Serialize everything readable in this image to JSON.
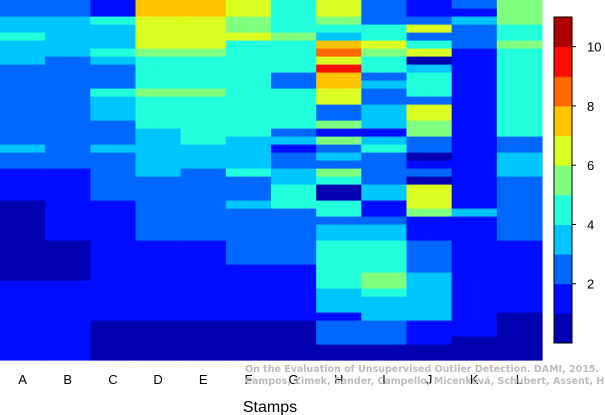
{
  "chart_data": {
    "type": "heatmap",
    "title": "",
    "xlabel": "Stamps",
    "ylabel": "",
    "colorbar": {
      "min": 0,
      "max": 11,
      "ticks": [
        2,
        4,
        6,
        8,
        10
      ],
      "colormap": "jet"
    },
    "columns": [
      "A",
      "B",
      "C",
      "D",
      "E",
      "F",
      "G",
      "H",
      "I",
      "J",
      "K",
      "L"
    ],
    "column_values": [
      [
        1,
        1,
        1,
        1,
        1,
        1,
        1,
        1,
        1,
        1,
        0,
        0,
        0,
        0,
        0,
        0,
        0,
        0,
        0,
        0,
        1,
        1,
        1,
        1,
        2,
        2,
        3,
        2,
        2,
        2,
        2,
        2,
        2,
        2,
        2,
        2,
        2,
        3,
        3,
        3,
        4,
        3,
        3,
        2,
        2
      ],
      [
        1,
        1,
        1,
        1,
        1,
        1,
        1,
        1,
        1,
        1,
        0,
        0,
        0,
        0,
        0,
        1,
        1,
        1,
        1,
        1,
        1,
        1,
        1,
        1,
        2,
        2,
        2,
        2,
        2,
        2,
        2,
        2,
        2,
        2,
        2,
        2,
        2,
        2,
        3,
        3,
        3,
        3,
        3,
        2,
        2
      ],
      [
        0,
        0,
        0,
        0,
        0,
        1,
        1,
        1,
        1,
        1,
        1,
        1,
        1,
        1,
        1,
        1,
        1,
        1,
        1,
        1,
        2,
        2,
        2,
        2,
        2,
        2,
        3,
        2,
        2,
        2,
        3,
        3,
        3,
        4,
        2,
        2,
        2,
        3,
        4,
        3,
        3,
        3,
        4,
        1,
        1
      ],
      [
        0,
        0,
        0,
        0,
        0,
        1,
        1,
        1,
        1,
        1,
        1,
        1,
        1,
        1,
        1,
        2,
        2,
        2,
        2,
        2,
        2,
        2,
        2,
        3,
        3,
        3,
        3,
        3,
        3,
        4,
        4,
        4,
        4,
        5,
        4,
        4,
        4,
        4,
        5,
        6,
        6,
        6,
        6,
        7,
        7
      ],
      [
        0,
        0,
        0,
        0,
        0,
        1,
        1,
        1,
        1,
        1,
        1,
        1,
        1,
        1,
        1,
        2,
        2,
        2,
        2,
        2,
        2,
        2,
        2,
        2,
        3,
        3,
        3,
        4,
        4,
        4,
        4,
        4,
        4,
        5,
        4,
        4,
        4,
        4,
        5,
        6,
        6,
        6,
        6,
        7,
        7
      ],
      [
        0,
        0,
        0,
        0,
        0,
        1,
        1,
        1,
        1,
        1,
        1,
        1,
        2,
        2,
        2,
        2,
        2,
        2,
        2,
        3,
        2,
        2,
        2,
        4,
        3,
        3,
        3,
        3,
        4,
        4,
        4,
        4,
        4,
        4,
        4,
        4,
        4,
        4,
        4,
        4,
        6,
        5,
        5,
        6,
        6
      ],
      [
        0,
        0,
        0,
        0,
        0,
        1,
        1,
        1,
        1,
        1,
        1,
        1,
        2,
        2,
        2,
        2,
        2,
        2,
        2,
        4,
        4,
        4,
        3,
        3,
        2,
        2,
        1,
        3,
        2,
        4,
        4,
        4,
        4,
        4,
        2,
        2,
        4,
        4,
        4,
        4,
        5,
        4,
        4,
        4,
        4
      ],
      [
        0,
        0,
        2,
        2,
        2,
        1,
        3,
        3,
        3,
        4,
        4,
        4,
        4,
        4,
        4,
        3,
        3,
        2,
        4,
        4,
        0,
        0,
        4,
        5,
        2,
        3,
        2,
        5,
        1,
        5,
        2,
        2,
        6,
        6,
        7,
        7,
        9,
        6,
        8,
        7,
        3,
        4,
        5,
        6,
        6
      ],
      [
        0,
        0,
        2,
        2,
        2,
        3,
        3,
        3,
        4,
        5,
        5,
        4,
        4,
        4,
        4,
        3,
        3,
        2,
        1,
        1,
        3,
        3,
        2,
        2,
        2,
        2,
        4,
        3,
        1,
        3,
        3,
        3,
        2,
        2,
        3,
        2,
        4,
        4,
        5,
        6,
        4,
        4,
        2,
        2,
        2
      ],
      [
        0,
        0,
        1,
        1,
        1,
        3,
        3,
        3,
        3,
        3,
        3,
        2,
        2,
        2,
        2,
        1,
        1,
        1,
        5,
        6,
        6,
        6,
        0,
        2,
        1,
        0,
        2,
        2,
        5,
        5,
        6,
        6,
        2,
        4,
        4,
        4,
        3,
        0,
        6,
        4,
        2,
        6,
        2,
        1,
        1
      ],
      [
        0,
        0,
        0,
        1,
        1,
        1,
        1,
        1,
        1,
        1,
        1,
        1,
        1,
        1,
        1,
        1,
        1,
        1,
        3,
        1,
        1,
        1,
        1,
        1,
        1,
        1,
        1,
        1,
        1,
        1,
        1,
        1,
        1,
        1,
        1,
        1,
        1,
        1,
        1,
        2,
        2,
        2,
        3,
        1,
        2
      ],
      [
        0,
        0,
        0,
        0,
        0,
        0,
        1,
        1,
        1,
        1,
        1,
        1,
        1,
        1,
        1,
        2,
        2,
        2,
        2,
        2,
        2,
        2,
        2,
        3,
        3,
        3,
        2,
        2,
        4,
        4,
        4,
        4,
        4,
        4,
        4,
        4,
        4,
        4,
        4,
        5,
        4,
        4,
        5,
        5,
        5
      ]
    ]
  },
  "watermark": {
    "line1": "On the Evaluation of Unsupervised Outlier Detection. DAMI, 2015.",
    "line2": "Campos, Zimek, Sander, Campello, Micenková, Schubert, Assent, Houle"
  }
}
